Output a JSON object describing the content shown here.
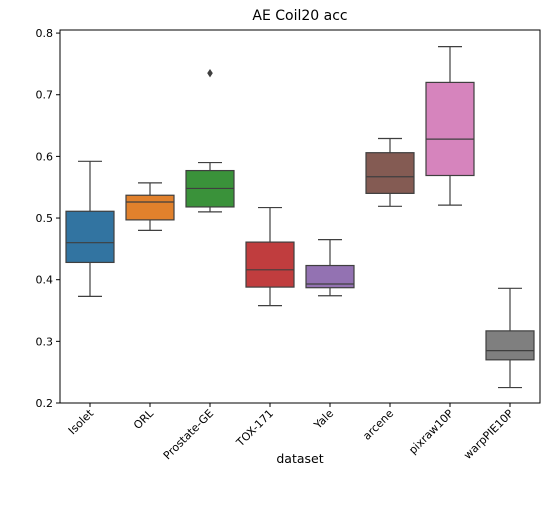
{
  "chart_data": {
    "type": "box",
    "title": "AE Coil20 acc",
    "xlabel": "dataset",
    "ylabel": "",
    "ylim": [
      0.2,
      0.805
    ],
    "yticks": [
      0.2,
      0.3,
      0.4,
      0.5,
      0.6,
      0.7,
      0.8
    ],
    "ytick_labels": [
      "0.2",
      "0.3",
      "0.4",
      "0.5",
      "0.6",
      "0.7",
      "0.8"
    ],
    "grid": false,
    "categories": [
      "Isolet",
      "ORL",
      "Prostate-GE",
      "TOX-171",
      "Yale",
      "arcene",
      "pixraw10P",
      "warpPIE10P"
    ],
    "boxes": [
      {
        "name": "Isolet",
        "color": "#3274a1",
        "whisker_low": 0.373,
        "q1": 0.428,
        "median": 0.46,
        "q3": 0.511,
        "whisker_high": 0.592,
        "outliers": []
      },
      {
        "name": "ORL",
        "color": "#e1812c",
        "whisker_low": 0.48,
        "q1": 0.497,
        "median": 0.526,
        "q3": 0.537,
        "whisker_high": 0.557,
        "outliers": []
      },
      {
        "name": "Prostate-GE",
        "color": "#3a923a",
        "whisker_low": 0.51,
        "q1": 0.518,
        "median": 0.548,
        "q3": 0.577,
        "whisker_high": 0.59,
        "outliers": [
          0.735
        ]
      },
      {
        "name": "TOX-171",
        "color": "#c03d3e",
        "whisker_low": 0.358,
        "q1": 0.388,
        "median": 0.416,
        "q3": 0.461,
        "whisker_high": 0.517,
        "outliers": []
      },
      {
        "name": "Yale",
        "color": "#9372b2",
        "whisker_low": 0.374,
        "q1": 0.387,
        "median": 0.393,
        "q3": 0.423,
        "whisker_high": 0.465,
        "outliers": []
      },
      {
        "name": "arcene",
        "color": "#845b53",
        "whisker_low": 0.519,
        "q1": 0.54,
        "median": 0.567,
        "q3": 0.606,
        "whisker_high": 0.629,
        "outliers": []
      },
      {
        "name": "pixraw10P",
        "color": "#d684bd",
        "whisker_low": 0.521,
        "q1": 0.569,
        "median": 0.628,
        "q3": 0.72,
        "whisker_high": 0.778,
        "outliers": []
      },
      {
        "name": "warpPIE10P",
        "color": "#7f7f7f",
        "whisker_low": 0.225,
        "q1": 0.27,
        "median": 0.285,
        "q3": 0.317,
        "whisker_high": 0.386,
        "outliers": []
      }
    ]
  }
}
